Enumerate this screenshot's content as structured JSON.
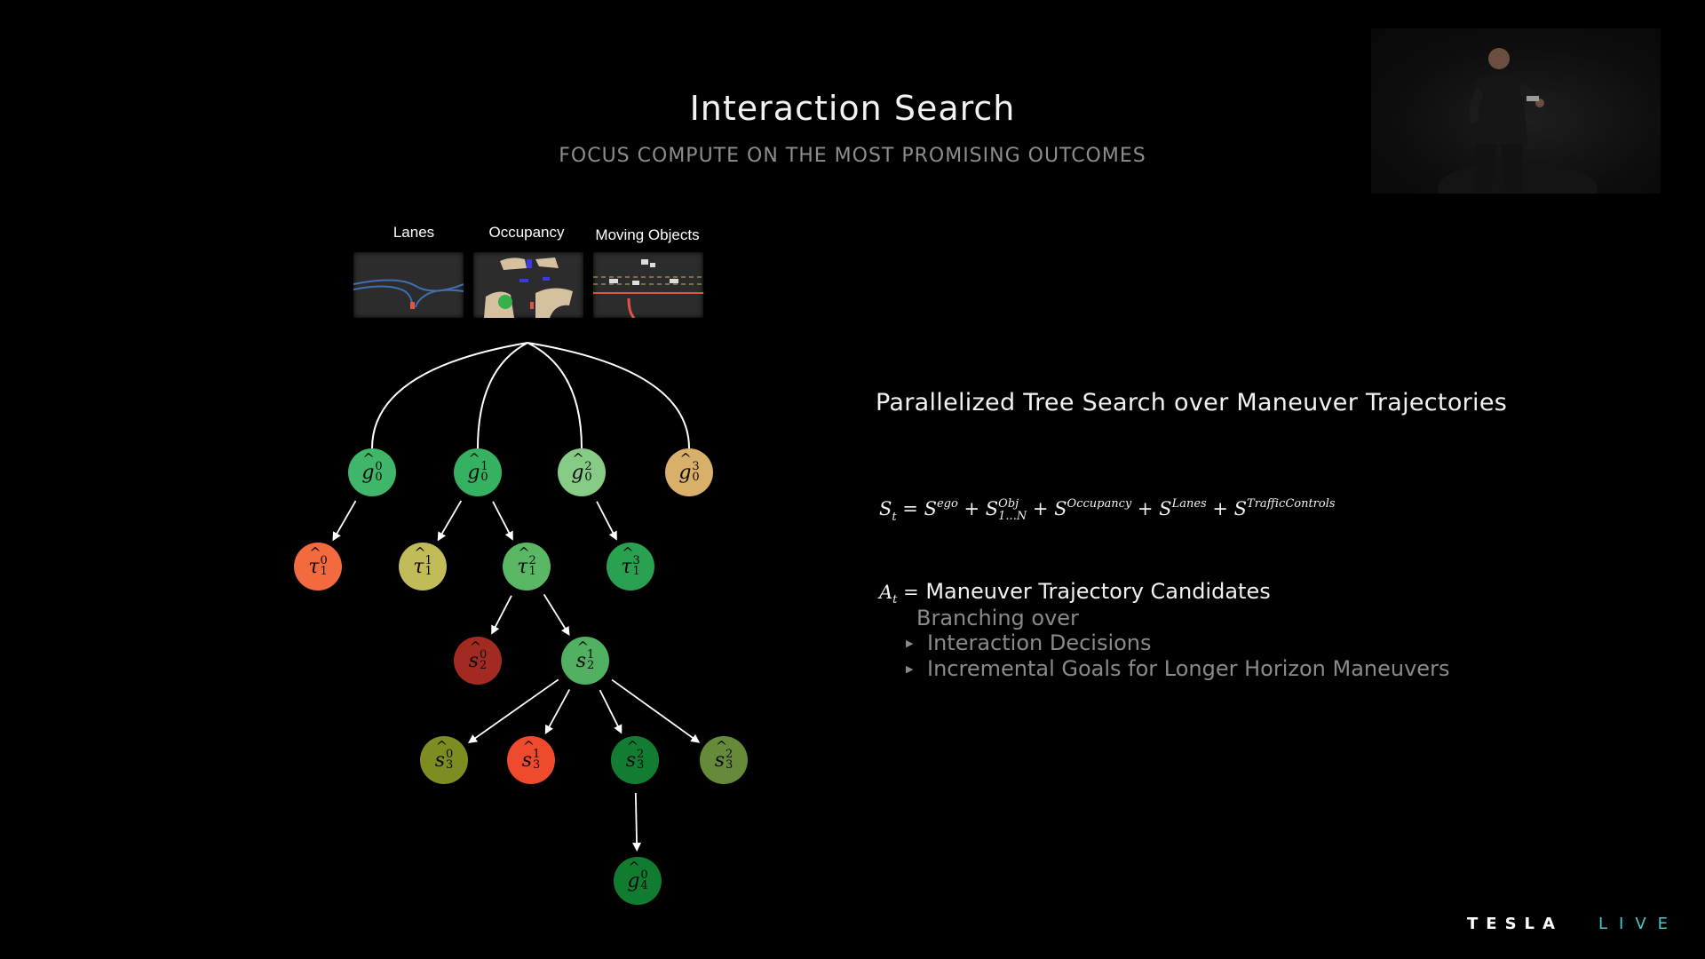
{
  "slide": {
    "title": "Interaction Search",
    "subtitle": "FOCUS COMPUTE ON THE MOST PROMISING OUTCOMES"
  },
  "inputs": [
    {
      "label": "Lanes"
    },
    {
      "label": "Occupancy"
    },
    {
      "label": "Moving Objects"
    }
  ],
  "tree": {
    "nodes": [
      {
        "id": "g0_0",
        "symbol": "g",
        "sub": "0",
        "sup": "0",
        "color": "#3fb66a"
      },
      {
        "id": "g0_1",
        "symbol": "g",
        "sub": "0",
        "sup": "1",
        "color": "#36b161"
      },
      {
        "id": "g0_2",
        "symbol": "g",
        "sub": "0",
        "sup": "2",
        "color": "#86cc86"
      },
      {
        "id": "g0_3",
        "symbol": "g",
        "sub": "0",
        "sup": "3",
        "color": "#d8b06a"
      },
      {
        "id": "t1_0",
        "symbol": "τ",
        "sub": "1",
        "sup": "0",
        "color": "#f26a3e"
      },
      {
        "id": "t1_1",
        "symbol": "τ",
        "sub": "1",
        "sup": "1",
        "color": "#c2bc58"
      },
      {
        "id": "t1_2",
        "symbol": "τ",
        "sub": "1",
        "sup": "2",
        "color": "#5ab865"
      },
      {
        "id": "t1_3",
        "symbol": "τ",
        "sub": "1",
        "sup": "3",
        "color": "#2aa150"
      },
      {
        "id": "s2_0",
        "symbol": "s",
        "sub": "2",
        "sup": "0",
        "color": "#a32a23"
      },
      {
        "id": "s2_1",
        "symbol": "s",
        "sub": "2",
        "sup": "1",
        "color": "#52b062"
      },
      {
        "id": "s3_0",
        "symbol": "s",
        "sub": "3",
        "sup": "0",
        "color": "#7e8c22"
      },
      {
        "id": "s3_1",
        "symbol": "s",
        "sub": "3",
        "sup": "1",
        "color": "#ef4a2d"
      },
      {
        "id": "s3_2",
        "symbol": "s",
        "sub": "3",
        "sup": "2",
        "color": "#127d32"
      },
      {
        "id": "s3_3",
        "symbol": "s",
        "sub": "3",
        "sup": "2",
        "color": "#678a3a"
      },
      {
        "id": "g4_0",
        "symbol": "g",
        "sub": "4",
        "sup": "0",
        "color": "#117b30"
      }
    ],
    "edges": [
      [
        "root",
        "g0_0"
      ],
      [
        "root",
        "g0_1"
      ],
      [
        "root",
        "g0_2"
      ],
      [
        "root",
        "g0_3"
      ],
      [
        "g0_0",
        "t1_0"
      ],
      [
        "g0_1",
        "t1_1"
      ],
      [
        "g0_1",
        "t1_2"
      ],
      [
        "g0_2",
        "t1_3"
      ],
      [
        "t1_2",
        "s2_0"
      ],
      [
        "t1_2",
        "s2_1"
      ],
      [
        "s2_1",
        "s3_0"
      ],
      [
        "s2_1",
        "s3_1"
      ],
      [
        "s2_1",
        "s3_2"
      ],
      [
        "s2_1",
        "s3_3"
      ],
      [
        "s3_2",
        "g4_0"
      ]
    ]
  },
  "panel": {
    "heading": "Parallelized Tree Search over Maneuver Trajectories",
    "score_formula": {
      "lhs": "S",
      "lhs_sub": "t",
      "terms": [
        {
          "base": "S",
          "sup": "ego"
        },
        {
          "base": "S",
          "sup": "Obj",
          "sub": "1...N"
        },
        {
          "base": "S",
          "sup": "Occupancy"
        },
        {
          "base": "S",
          "sup": "Lanes"
        },
        {
          "base": "S",
          "sup": "TrafficControls"
        }
      ]
    },
    "action": {
      "var": "A",
      "var_sub": "t",
      "text": "Maneuver Trajectory Candidates"
    },
    "branching": "Branching over",
    "bullets": [
      "Interaction Decisions",
      "Incremental Goals for Longer Horizon Maneuvers"
    ]
  },
  "branding": {
    "logo": "TESLA",
    "live": "LIVE",
    "live_color": "#48c9c9"
  }
}
